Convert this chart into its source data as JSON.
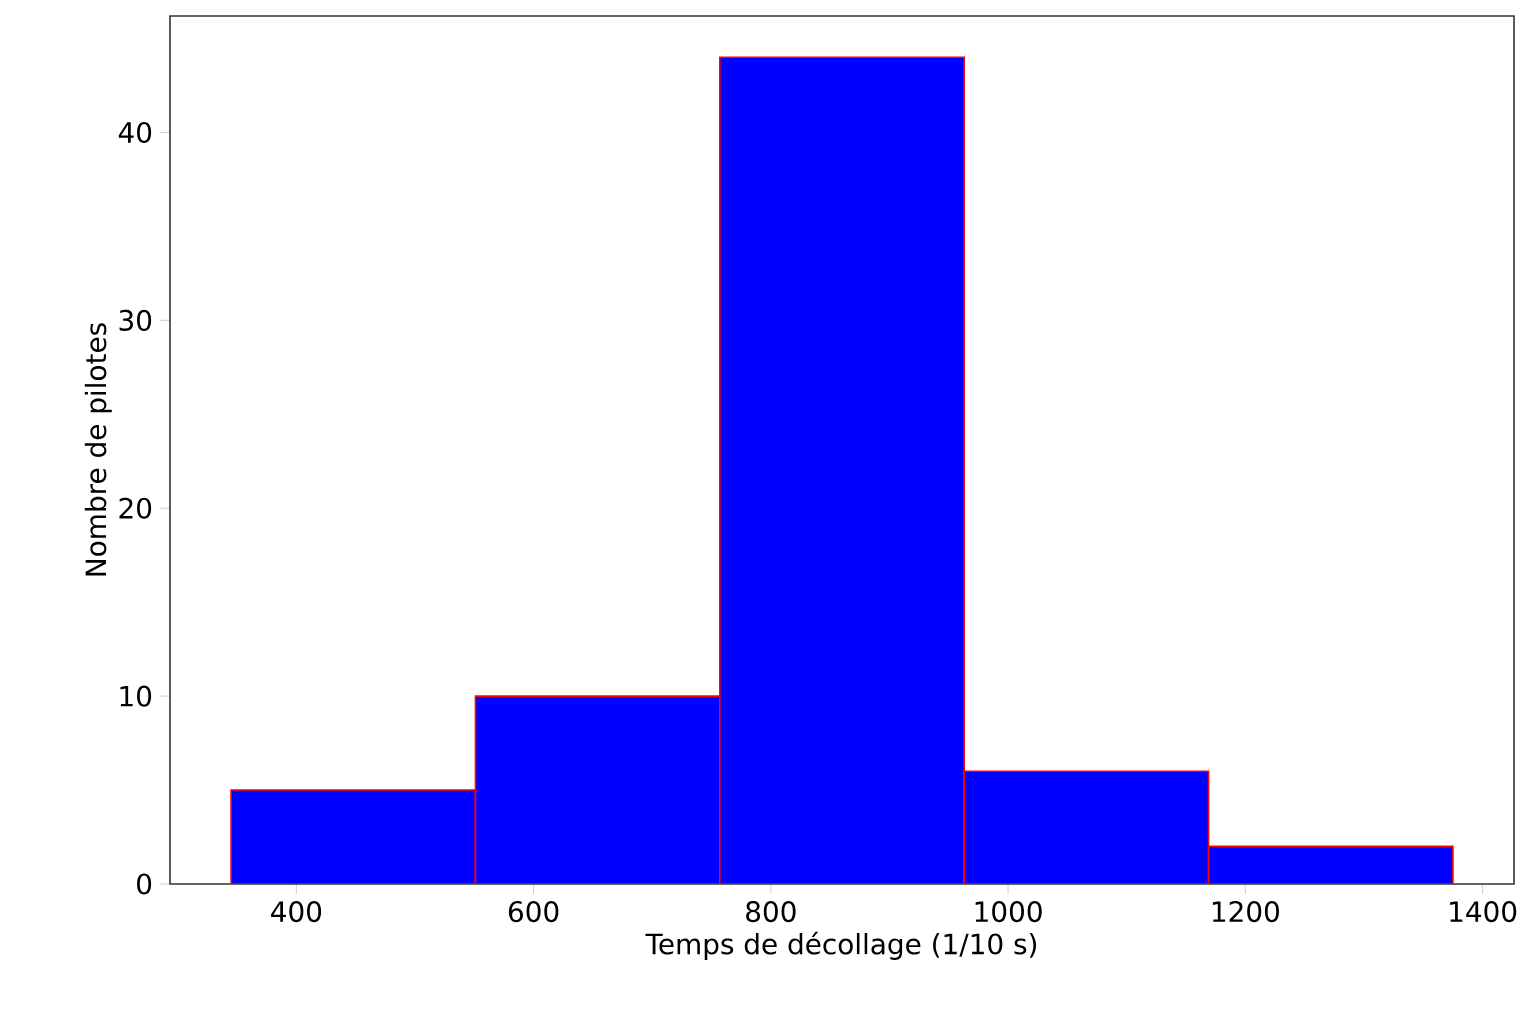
{
  "chart_data": {
    "type": "histogram",
    "xlabel": "Temps de décollage (1/10 s)",
    "ylabel": "Nombre de pilotes",
    "bins": [
      345,
      551,
      757,
      963,
      1169,
      1375
    ],
    "values": [
      5,
      10,
      44,
      6,
      2
    ],
    "color": "#0000ff",
    "xlim": [
      293.5,
      1426.5
    ],
    "ylim": [
      0,
      46.2
    ],
    "xticks": [
      400,
      600,
      800,
      1000,
      1200,
      1400
    ],
    "yticks": [
      0,
      10,
      20,
      30,
      40
    ]
  }
}
